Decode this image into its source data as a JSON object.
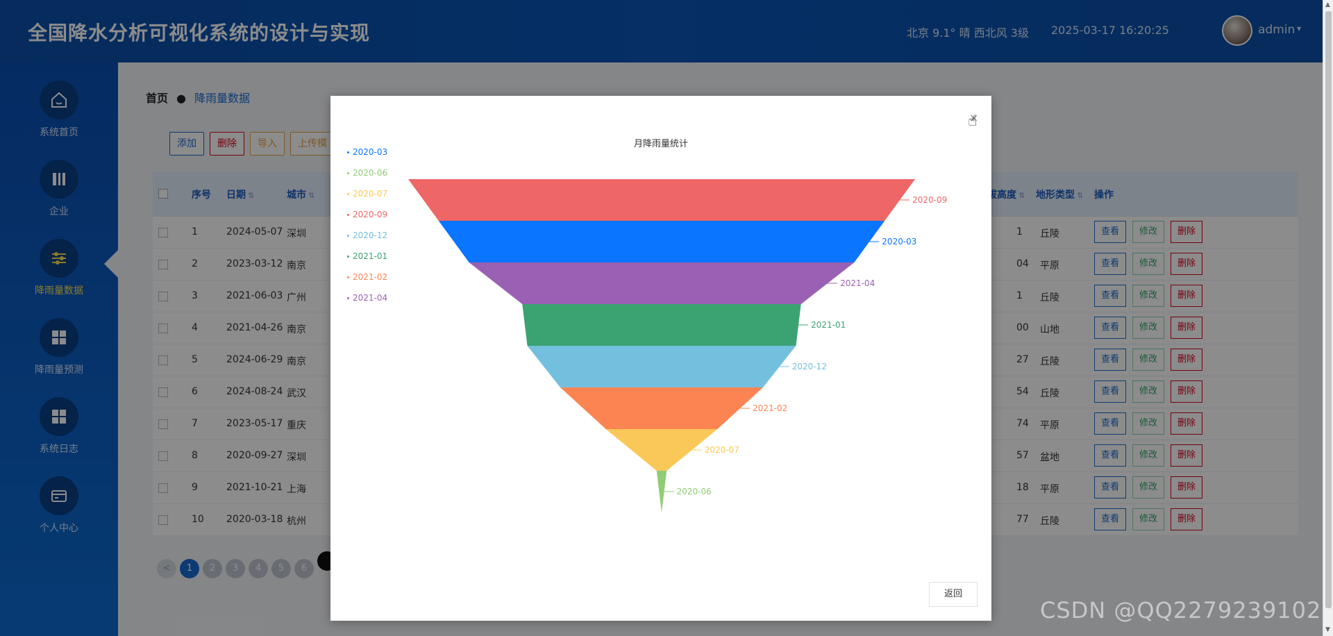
{
  "header": {
    "title": "全国降水分析可视化系统的设计与实现",
    "weather": "北京  9.1°  晴  西北风  3级",
    "datetime": "2025-03-17 16:20:25",
    "user": "admin",
    "caret_icon": "caret-down-icon"
  },
  "sidebar": {
    "items": [
      {
        "label": "系统首页",
        "icon": "home-icon"
      },
      {
        "label": "企业",
        "icon": "book-icon"
      },
      {
        "label": "降雨量数据",
        "icon": "sliders-icon",
        "active": true
      },
      {
        "label": "降雨量预测",
        "icon": "grid-icon"
      },
      {
        "label": "系统日志",
        "icon": "grid-icon"
      },
      {
        "label": "个人中心",
        "icon": "wallet-icon"
      }
    ]
  },
  "breadcrumb": {
    "home": "首页",
    "current": "降雨量数据"
  },
  "toolbar": {
    "add": "添加",
    "delete": "删除",
    "import": "导入",
    "upload": "上传模"
  },
  "table": {
    "headers": {
      "index": "序号",
      "date": "日期",
      "city": "城市",
      "altitude": "拔高度",
      "terrain": "地形类型",
      "ops": "操作"
    },
    "rows": [
      {
        "index": "1",
        "date": "2024-05-07",
        "city": "深圳",
        "altitude": "1",
        "terrain": "丘陵"
      },
      {
        "index": "2",
        "date": "2023-03-12",
        "city": "南京",
        "altitude": "04",
        "terrain": "平原"
      },
      {
        "index": "3",
        "date": "2021-06-03",
        "city": "广州",
        "altitude": "1",
        "terrain": "丘陵"
      },
      {
        "index": "4",
        "date": "2021-04-26",
        "city": "南京",
        "altitude": "00",
        "terrain": "山地"
      },
      {
        "index": "5",
        "date": "2024-06-29",
        "city": "南京",
        "altitude": "27",
        "terrain": "丘陵"
      },
      {
        "index": "6",
        "date": "2024-08-24",
        "city": "武汉",
        "altitude": "54",
        "terrain": "丘陵"
      },
      {
        "index": "7",
        "date": "2023-05-17",
        "city": "重庆",
        "altitude": "74",
        "terrain": "平原"
      },
      {
        "index": "8",
        "date": "2020-09-27",
        "city": "深圳",
        "altitude": "57",
        "terrain": "盆地"
      },
      {
        "index": "9",
        "date": "2021-10-21",
        "city": "上海",
        "altitude": "18",
        "terrain": "平原"
      },
      {
        "index": "10",
        "date": "2020-03-18",
        "city": "杭州",
        "altitude": "77",
        "terrain": "丘陵"
      }
    ],
    "ops": {
      "view": "查看",
      "edit": "修改",
      "delete": "删除"
    }
  },
  "pager": {
    "prev": "<",
    "pages": [
      "1",
      "2",
      "3",
      "4",
      "5",
      "6"
    ],
    "current": "1"
  },
  "modal": {
    "close": "×",
    "back": "返回"
  },
  "chart_data": {
    "type": "funnel",
    "title": "月降雨量统计",
    "legend_position": "left",
    "legend": [
      "2020-03",
      "2020-06",
      "2020-07",
      "2020-09",
      "2020-12",
      "2021-01",
      "2021-02",
      "2021-04"
    ],
    "series": [
      {
        "name": "2020-09",
        "value": 100,
        "color": "#ee6666"
      },
      {
        "name": "2020-03",
        "value": 88,
        "color": "#0a75ff"
      },
      {
        "name": "2021-04",
        "value": 76,
        "color": "#9a60b4"
      },
      {
        "name": "2021-01",
        "value": 55,
        "color": "#3ba272"
      },
      {
        "name": "2020-12",
        "value": 53,
        "color": "#73c0de"
      },
      {
        "name": "2021-02",
        "value": 40,
        "color": "#fc8452"
      },
      {
        "name": "2020-07",
        "value": 22,
        "color": "#fac858"
      },
      {
        "name": "2020-06",
        "value": 2,
        "color": "#91cc75"
      }
    ]
  },
  "watermark": "CSDN @QQ2279239102"
}
